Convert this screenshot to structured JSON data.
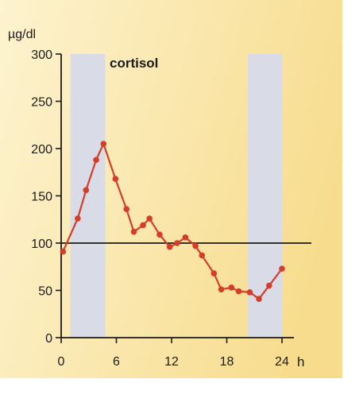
{
  "chart_data": {
    "type": "line",
    "title": "cortisol",
    "ylabel": "µg/dl",
    "xlabel": "h",
    "xlim": [
      0,
      24
    ],
    "ylim": [
      0,
      300
    ],
    "x_ticks": [
      0,
      6,
      12,
      18,
      24
    ],
    "y_ticks": [
      0,
      50,
      100,
      150,
      200,
      250,
      300
    ],
    "reference_line": 100,
    "shaded_bands": [
      {
        "from": 1.0,
        "to": 4.8
      },
      {
        "from": 20.3,
        "to": 24.0
      }
    ],
    "series": [
      {
        "x": [
          0.2,
          1.8,
          2.7,
          3.8,
          4.6,
          5.9,
          7.1,
          7.9,
          8.9,
          9.6,
          10.7,
          11.8,
          12.6,
          13.5,
          14.6,
          15.3,
          16.6,
          17.4,
          18.5,
          19.3,
          20.5,
          21.5,
          22.6,
          24.0
        ],
        "values": [
          91,
          126,
          156,
          188,
          205,
          168,
          136,
          112,
          119,
          126,
          109,
          96,
          100,
          106,
          97,
          87,
          68,
          51,
          53,
          49,
          48,
          41,
          55,
          73
        ]
      }
    ],
    "colors": {
      "line": "#d33d2a",
      "marker": "#d33d2a",
      "band": "#d9dce6",
      "reference": "#1a1a1a",
      "axis": "#1a1a1a",
      "text": "#1a1a1a",
      "background_left": "#fdf3cf",
      "background_right": "#f7dc8d"
    }
  }
}
